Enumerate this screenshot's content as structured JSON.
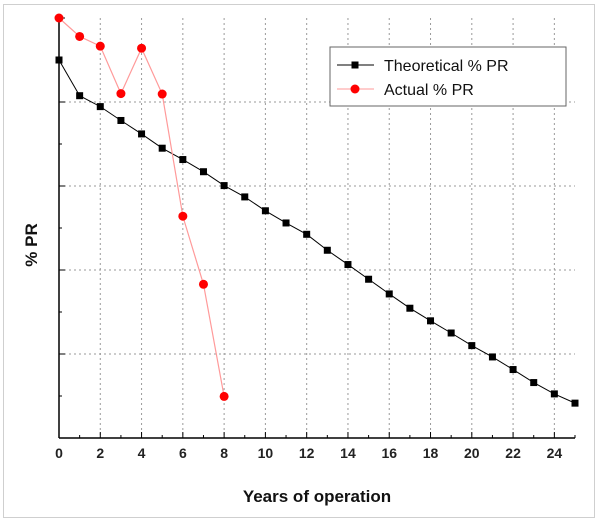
{
  "chart_data": {
    "type": "line",
    "xlabel": "Years of operation",
    "ylabel": "% PR",
    "xlim": [
      0,
      25
    ],
    "ylim": [
      0,
      100
    ],
    "x_ticks": [
      0,
      2,
      4,
      6,
      8,
      10,
      12,
      14,
      16,
      18,
      20,
      22,
      24
    ],
    "y_tick_labels_shown": false,
    "grid": true,
    "legend_position": "top-right",
    "series": [
      {
        "name": "Theoretical % PR",
        "marker": "square",
        "color": "#000000",
        "x": [
          0,
          1,
          2,
          3,
          4,
          5,
          6,
          7,
          8,
          9,
          10,
          11,
          12,
          13,
          14,
          15,
          16,
          17,
          18,
          19,
          20,
          21,
          22,
          23,
          24,
          25
        ],
        "y": [
          90,
          81.5,
          78.9,
          75.6,
          72.4,
          69.0,
          66.3,
          63.4,
          60.1,
          57.4,
          54.1,
          51.2,
          48.5,
          44.7,
          41.3,
          37.8,
          34.3,
          30.9,
          27.9,
          25.0,
          22.0,
          19.3,
          16.3,
          13.2,
          10.5,
          8.3
        ]
      },
      {
        "name": "Actual % PR",
        "marker": "circle",
        "color": "#ff0000",
        "x": [
          0,
          1,
          2,
          3,
          4,
          5,
          6,
          7,
          8
        ],
        "y": [
          100,
          95.6,
          93.3,
          82,
          92.8,
          81.9,
          52.8,
          36.6,
          9.9
        ]
      }
    ]
  }
}
